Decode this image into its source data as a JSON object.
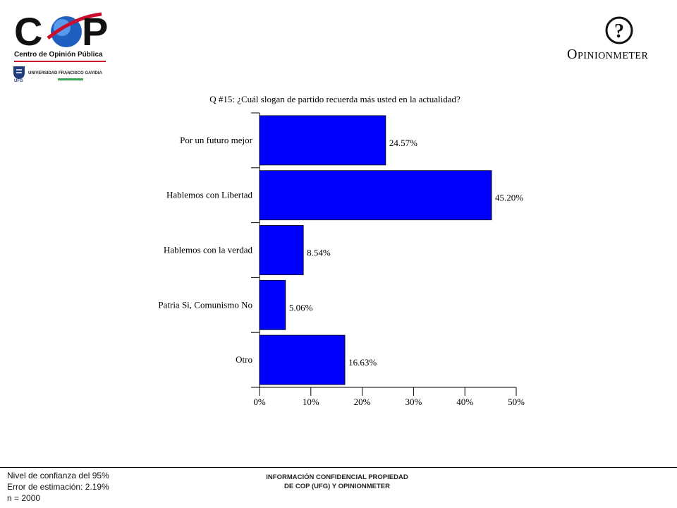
{
  "header": {
    "cop_mark": "C P",
    "cop_subtitle": "Centro de Opinión Pública",
    "ufg_name": "UNIVERSIDAD FRANCISCO GAVIDIA",
    "ufg_code": "UFG",
    "opinionmeter_mark": "?",
    "opinionmeter_name": "Opinionmeter"
  },
  "chart_data": {
    "type": "bar",
    "orientation": "horizontal",
    "title": "Q #15: ¿Cuál slogan de partido recuerda más usted en la actualidad?",
    "categories": [
      "Por un futuro mejor",
      "Hablemos con Libertad",
      "Hablemos con la verdad",
      "Patria Si, Comunismo No",
      "Otro"
    ],
    "values": [
      24.57,
      45.2,
      8.54,
      5.06,
      16.63
    ],
    "value_labels": [
      "24.57%",
      "45.20%",
      "8.54%",
      "5.06%",
      "16.63%"
    ],
    "xticks": [
      "0%",
      "10%",
      "20%",
      "30%",
      "40%",
      "50%"
    ],
    "xlim": [
      0,
      50
    ],
    "bar_color": "#0000ff",
    "grid": false,
    "legend": "none"
  },
  "footer": {
    "stats": [
      "Nivel de confianza del 95%",
      "Error de estimación: 2.19%",
      "n = 2000"
    ],
    "confidential_line1": "INFORMACIÓN CONFIDENCIAL PROPIEDAD",
    "confidential_line2": "DE COP (UFG) Y OPINIONMETER"
  }
}
